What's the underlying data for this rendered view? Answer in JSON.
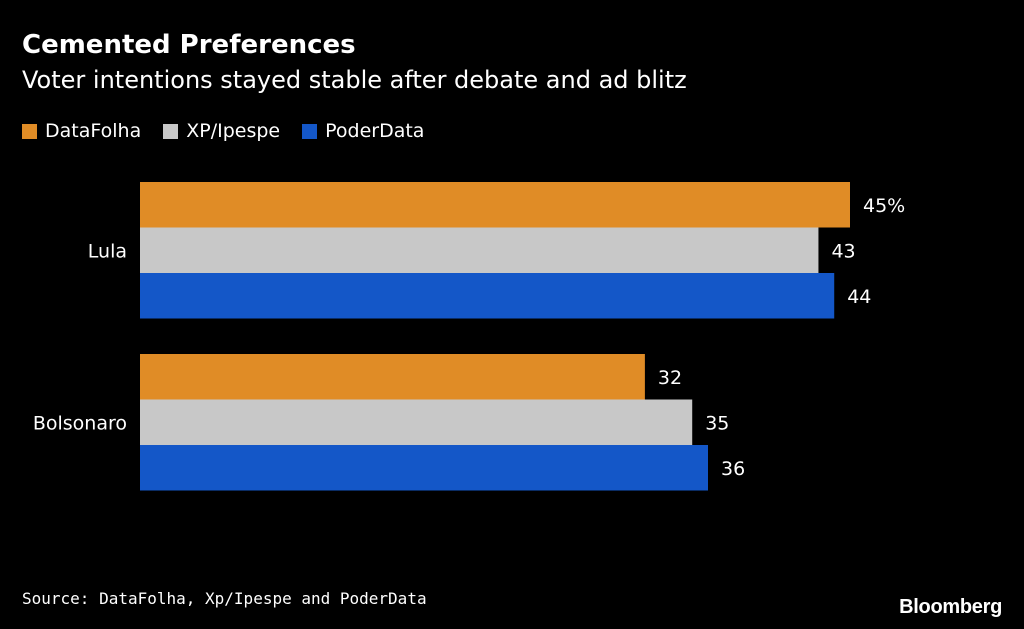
{
  "chart_data": {
    "type": "bar",
    "orientation": "horizontal",
    "title": "Cemented Preferences",
    "subtitle": "Voter intentions stayed stable after debate and ad blitz",
    "categories": [
      "Lula",
      "Bolsonaro"
    ],
    "series": [
      {
        "name": "DataFolha",
        "color": "#e08c26",
        "values": [
          45,
          32
        ],
        "labels": [
          "45%",
          "32"
        ]
      },
      {
        "name": "XP/Ipespe",
        "color": "#c8c8c8",
        "values": [
          43,
          35
        ],
        "labels": [
          "43",
          "35"
        ]
      },
      {
        "name": "PoderData",
        "color": "#1457c8",
        "values": [
          44,
          36
        ],
        "labels": [
          "44",
          "36"
        ]
      }
    ],
    "value_unit": "%",
    "xlim": [
      0,
      45
    ],
    "grid": false,
    "legend_position": "top-left",
    "source": "Source: DataFolha, Xp/Ipespe and PoderData",
    "brand": "Bloomberg"
  }
}
